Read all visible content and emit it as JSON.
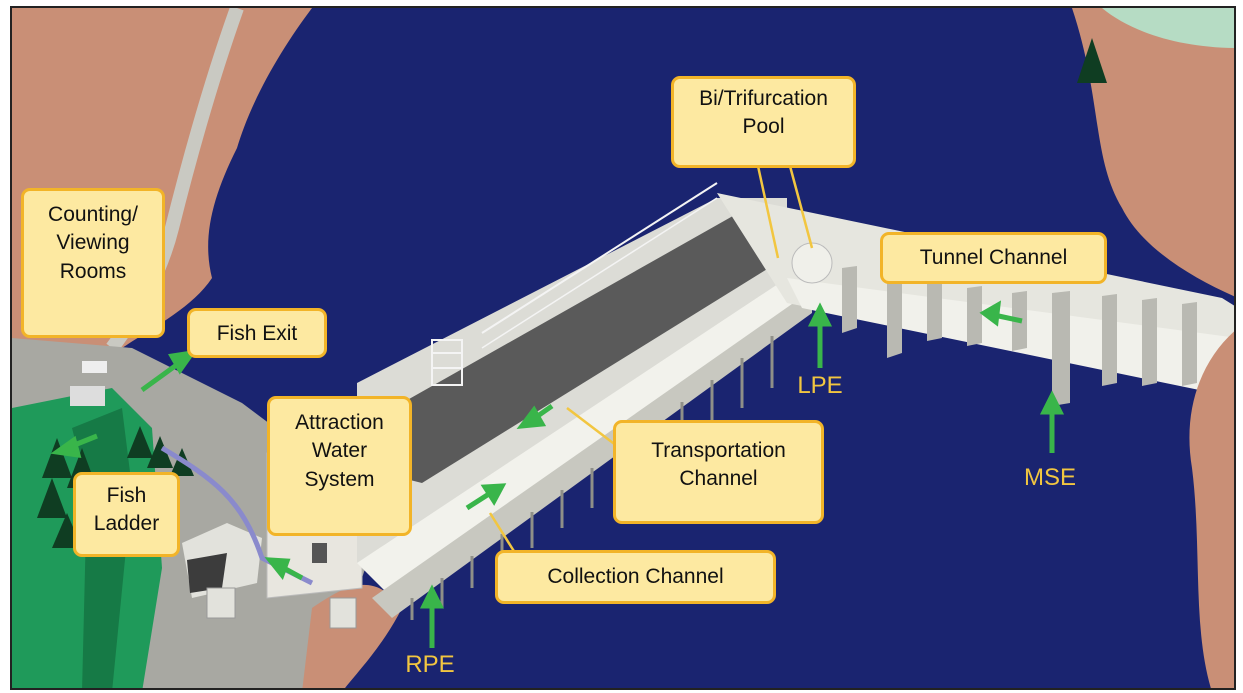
{
  "colors": {
    "water": "#1a2470",
    "land": "#c98f76",
    "concrete": "#ecece6",
    "arrow": "#39b54a",
    "callout_fill": "#fde9a1",
    "callout_border": "#f2b428",
    "plain_label": "#f2c640"
  },
  "labels": {
    "counting": [
      "Counting/",
      "Viewing",
      "Rooms"
    ],
    "fish_exit": "Fish Exit",
    "fish_ladder": [
      "Fish",
      "Ladder"
    ],
    "attraction": [
      "Attraction",
      "Water",
      "System"
    ],
    "transportation": [
      "Transportation",
      "Channel"
    ],
    "collection": "Collection Channel",
    "bifurcation": [
      "Bi/Trifurcation",
      "Pool"
    ],
    "tunnel": "Tunnel Channel",
    "lpe": "LPE",
    "mse": "MSE",
    "rpe": "RPE"
  }
}
